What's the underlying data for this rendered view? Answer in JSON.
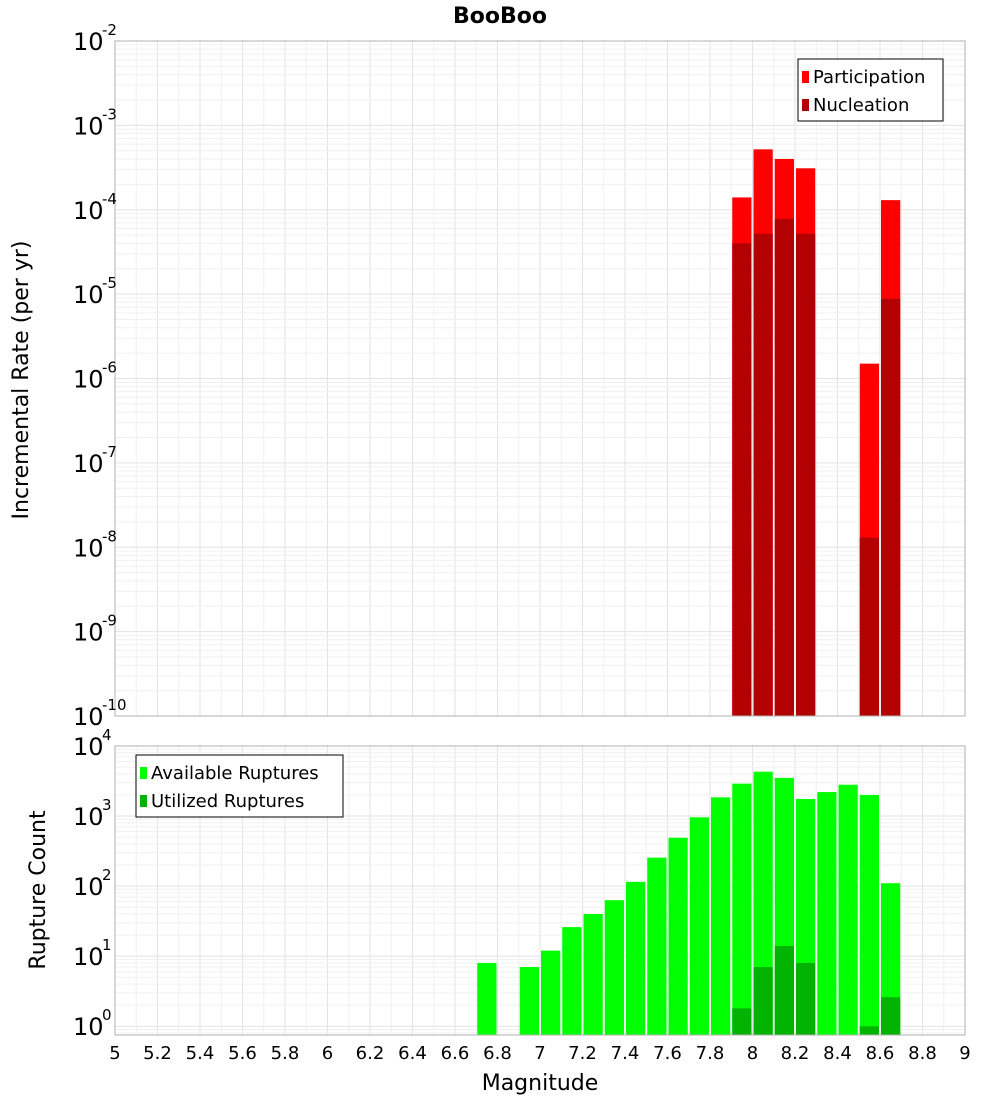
{
  "chart_data": [
    {
      "type": "bar",
      "title": "BooBoo",
      "xlabel": "",
      "ylabel": "Incremental Rate (per yr)",
      "yscale": "log",
      "ylim": [
        1e-10,
        0.01
      ],
      "xlim": [
        5,
        9
      ],
      "grid": true,
      "legend_position": "top-right",
      "bin_width": 0.1,
      "series": [
        {
          "name": "Participation",
          "color": "#ff0000",
          "x": [
            7.95,
            8.05,
            8.15,
            8.25,
            8.55,
            8.65
          ],
          "values": [
            0.00014,
            0.00052,
            0.0004,
            0.00031,
            1.5e-06,
            0.00013
          ]
        },
        {
          "name": "Nucleation",
          "color": "#b30000",
          "x": [
            7.95,
            8.05,
            8.15,
            8.25,
            8.55,
            8.65
          ],
          "values": [
            4e-05,
            5.2e-05,
            7.8e-05,
            5.2e-05,
            1.3e-08,
            8.8e-06
          ]
        }
      ],
      "ytick_labels": [
        {
          "base": "10",
          "exp": "-10"
        },
        {
          "base": "10",
          "exp": "-9"
        },
        {
          "base": "10",
          "exp": "-8"
        },
        {
          "base": "10",
          "exp": "-7"
        },
        {
          "base": "10",
          "exp": "-6"
        },
        {
          "base": "10",
          "exp": "-5"
        },
        {
          "base": "10",
          "exp": "-4"
        },
        {
          "base": "10",
          "exp": "-3"
        },
        {
          "base": "10",
          "exp": "-2"
        }
      ]
    },
    {
      "type": "bar",
      "title": "",
      "xlabel": "Magnitude",
      "ylabel": "Rupture Count",
      "yscale": "log",
      "ylim": [
        0.75,
        10000
      ],
      "xlim": [
        5,
        9
      ],
      "grid": true,
      "legend_position": "top-left",
      "bin_width": 0.1,
      "series": [
        {
          "name": "Available Ruptures",
          "color": "#00ff00",
          "x": [
            6.75,
            6.95,
            7.05,
            7.15,
            7.25,
            7.35,
            7.45,
            7.55,
            7.65,
            7.75,
            7.85,
            7.95,
            8.05,
            8.15,
            8.25,
            8.35,
            8.45,
            8.55,
            8.65
          ],
          "values": [
            8,
            7,
            12,
            26,
            40,
            63,
            115,
            255,
            490,
            960,
            1850,
            2900,
            4300,
            3500,
            1750,
            2200,
            2800,
            2000,
            110
          ]
        },
        {
          "name": "Utilized Ruptures",
          "color": "#00b300",
          "x": [
            7.95,
            8.05,
            8.15,
            8.25,
            8.55,
            8.65
          ],
          "values": [
            1.8,
            7,
            14,
            8,
            1,
            2.6
          ]
        }
      ],
      "xticks": [
        "5",
        "5.2",
        "5.4",
        "5.6",
        "5.8",
        "6",
        "6.2",
        "6.4",
        "6.6",
        "6.8",
        "7",
        "7.2",
        "7.4",
        "7.6",
        "7.8",
        "8",
        "8.2",
        "8.4",
        "8.6",
        "8.8",
        "9"
      ],
      "ytick_labels": [
        {
          "base": "10",
          "exp": "0"
        },
        {
          "base": "10",
          "exp": "1"
        },
        {
          "base": "10",
          "exp": "2"
        },
        {
          "base": "10",
          "exp": "3"
        },
        {
          "base": "10",
          "exp": "4"
        }
      ]
    }
  ]
}
